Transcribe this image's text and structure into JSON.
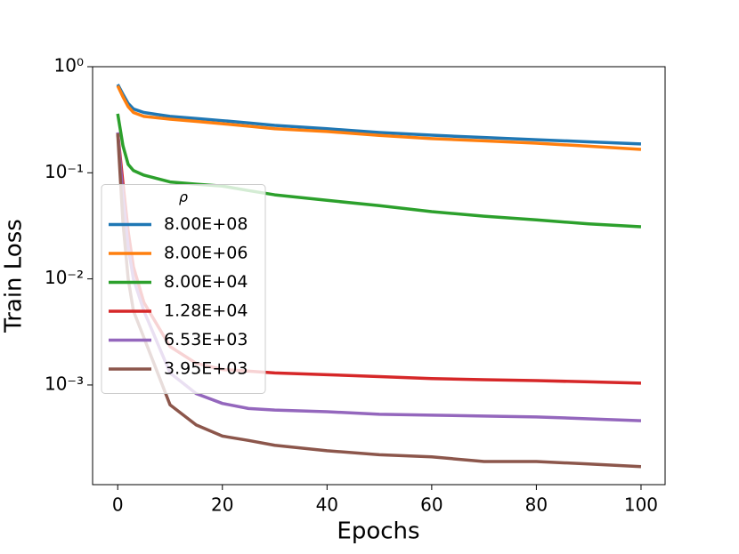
{
  "chart_data": {
    "type": "line",
    "xlabel": "Epochs",
    "ylabel": "Train Loss",
    "x": [
      0,
      1,
      2,
      3,
      5,
      10,
      15,
      20,
      25,
      30,
      40,
      50,
      60,
      70,
      80,
      90,
      100
    ],
    "xlim": [
      -4.8,
      104.6
    ],
    "xticks": [
      0,
      20,
      40,
      60,
      80,
      100
    ],
    "ylim": [
      0.000115,
      1
    ],
    "yscale": "log",
    "yticks": [
      {
        "value": 1,
        "label": "10⁰"
      },
      {
        "value": 0.1,
        "label": "10⁻¹"
      },
      {
        "value": 0.01,
        "label": "10⁻²"
      },
      {
        "value": 0.001,
        "label": "10⁻³"
      }
    ],
    "legend_title": "ρ",
    "legend_loc": "center left",
    "series": [
      {
        "name": "8.00E+08",
        "color": "#1f77b4",
        "values": [
          0.68,
          0.55,
          0.45,
          0.4,
          0.37,
          0.34,
          0.325,
          0.31,
          0.295,
          0.28,
          0.26,
          0.24,
          0.226,
          0.215,
          0.205,
          0.196,
          0.187
        ]
      },
      {
        "name": "8.00E+06",
        "color": "#ff7f0e",
        "values": [
          0.66,
          0.52,
          0.42,
          0.37,
          0.34,
          0.32,
          0.305,
          0.29,
          0.275,
          0.26,
          0.245,
          0.225,
          0.21,
          0.2,
          0.19,
          0.178,
          0.166
        ]
      },
      {
        "name": "8.00E+04",
        "color": "#2ca02c",
        "values": [
          0.36,
          0.18,
          0.12,
          0.105,
          0.095,
          0.082,
          0.078,
          0.075,
          0.068,
          0.062,
          0.055,
          0.049,
          0.043,
          0.039,
          0.036,
          0.033,
          0.031
        ]
      },
      {
        "name": "1.28E+04",
        "color": "#d62728",
        "values": [
          0.24,
          0.08,
          0.028,
          0.013,
          0.006,
          0.0023,
          0.0016,
          0.0014,
          0.00135,
          0.0013,
          0.00125,
          0.0012,
          0.00115,
          0.00112,
          0.0011,
          0.00107,
          0.00104
        ]
      },
      {
        "name": "6.53E+03",
        "color": "#9467bd",
        "values": [
          0.24,
          0.06,
          0.02,
          0.01,
          0.005,
          0.0013,
          0.00083,
          0.00067,
          0.0006,
          0.00058,
          0.00056,
          0.00053,
          0.00052,
          0.00051,
          0.0005,
          0.00048,
          0.00046
        ]
      },
      {
        "name": "3.95E+03",
        "color": "#8c564b",
        "values": [
          0.235,
          0.034,
          0.01,
          0.005,
          0.0028,
          0.00065,
          0.00042,
          0.00033,
          0.0003,
          0.00027,
          0.00024,
          0.00022,
          0.00021,
          0.00019,
          0.00019,
          0.00018,
          0.00017
        ]
      }
    ]
  }
}
